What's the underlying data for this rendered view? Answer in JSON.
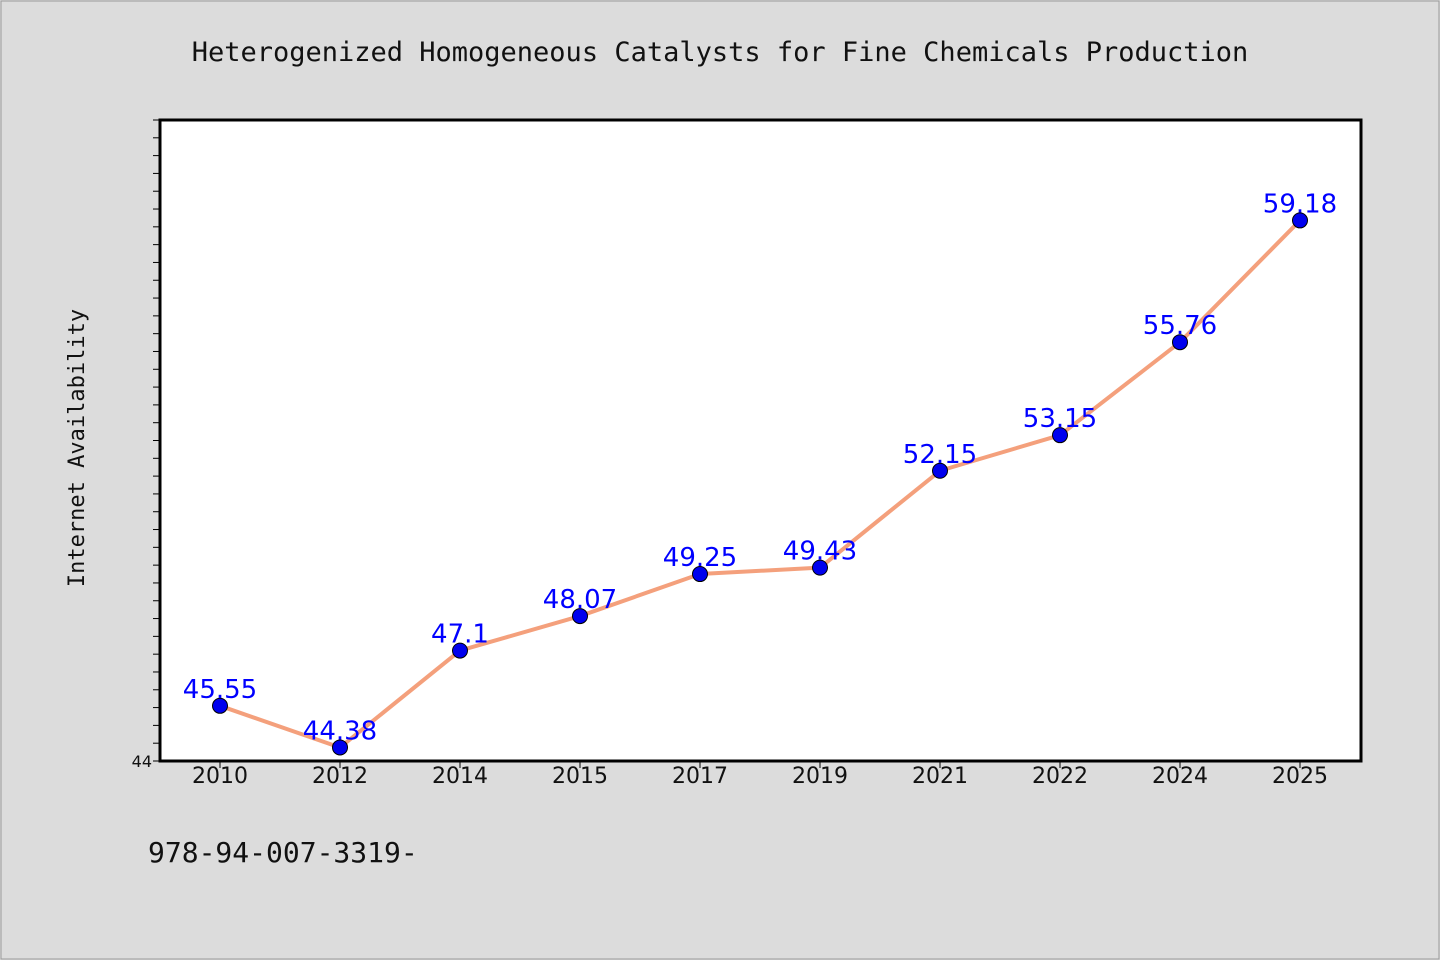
{
  "chart_data": {
    "type": "line",
    "title": "Heterogenized Homogeneous Catalysts for Fine Chemicals Production",
    "ylabel": "Internet Availability",
    "xlabel": "",
    "categories": [
      "2010",
      "2012",
      "2014",
      "2015",
      "2017",
      "2019",
      "2021",
      "2022",
      "2024",
      "2025"
    ],
    "series": [
      {
        "values": [
          45.55,
          44.38,
          47.1,
          48.07,
          49.25,
          49.43,
          52.15,
          53.15,
          55.76,
          59.18
        ]
      }
    ],
    "data_labels": [
      "45.55",
      "44.38",
      "47.1",
      "48.07",
      "49.25",
      "49.43",
      "52.15",
      "53.15",
      "55.76",
      "59.18"
    ],
    "ylim": [
      44,
      62
    ],
    "y_tick_labels": [
      "44"
    ],
    "grid": false,
    "legend": "none",
    "colors": {
      "line": "#f4a07c",
      "marker": "#0000ee",
      "data_label": "#0000ff",
      "background": "#dcdcdc",
      "plot_background": "#ffffff"
    }
  },
  "footer": {
    "isbn": "978-94-007-3319-"
  }
}
